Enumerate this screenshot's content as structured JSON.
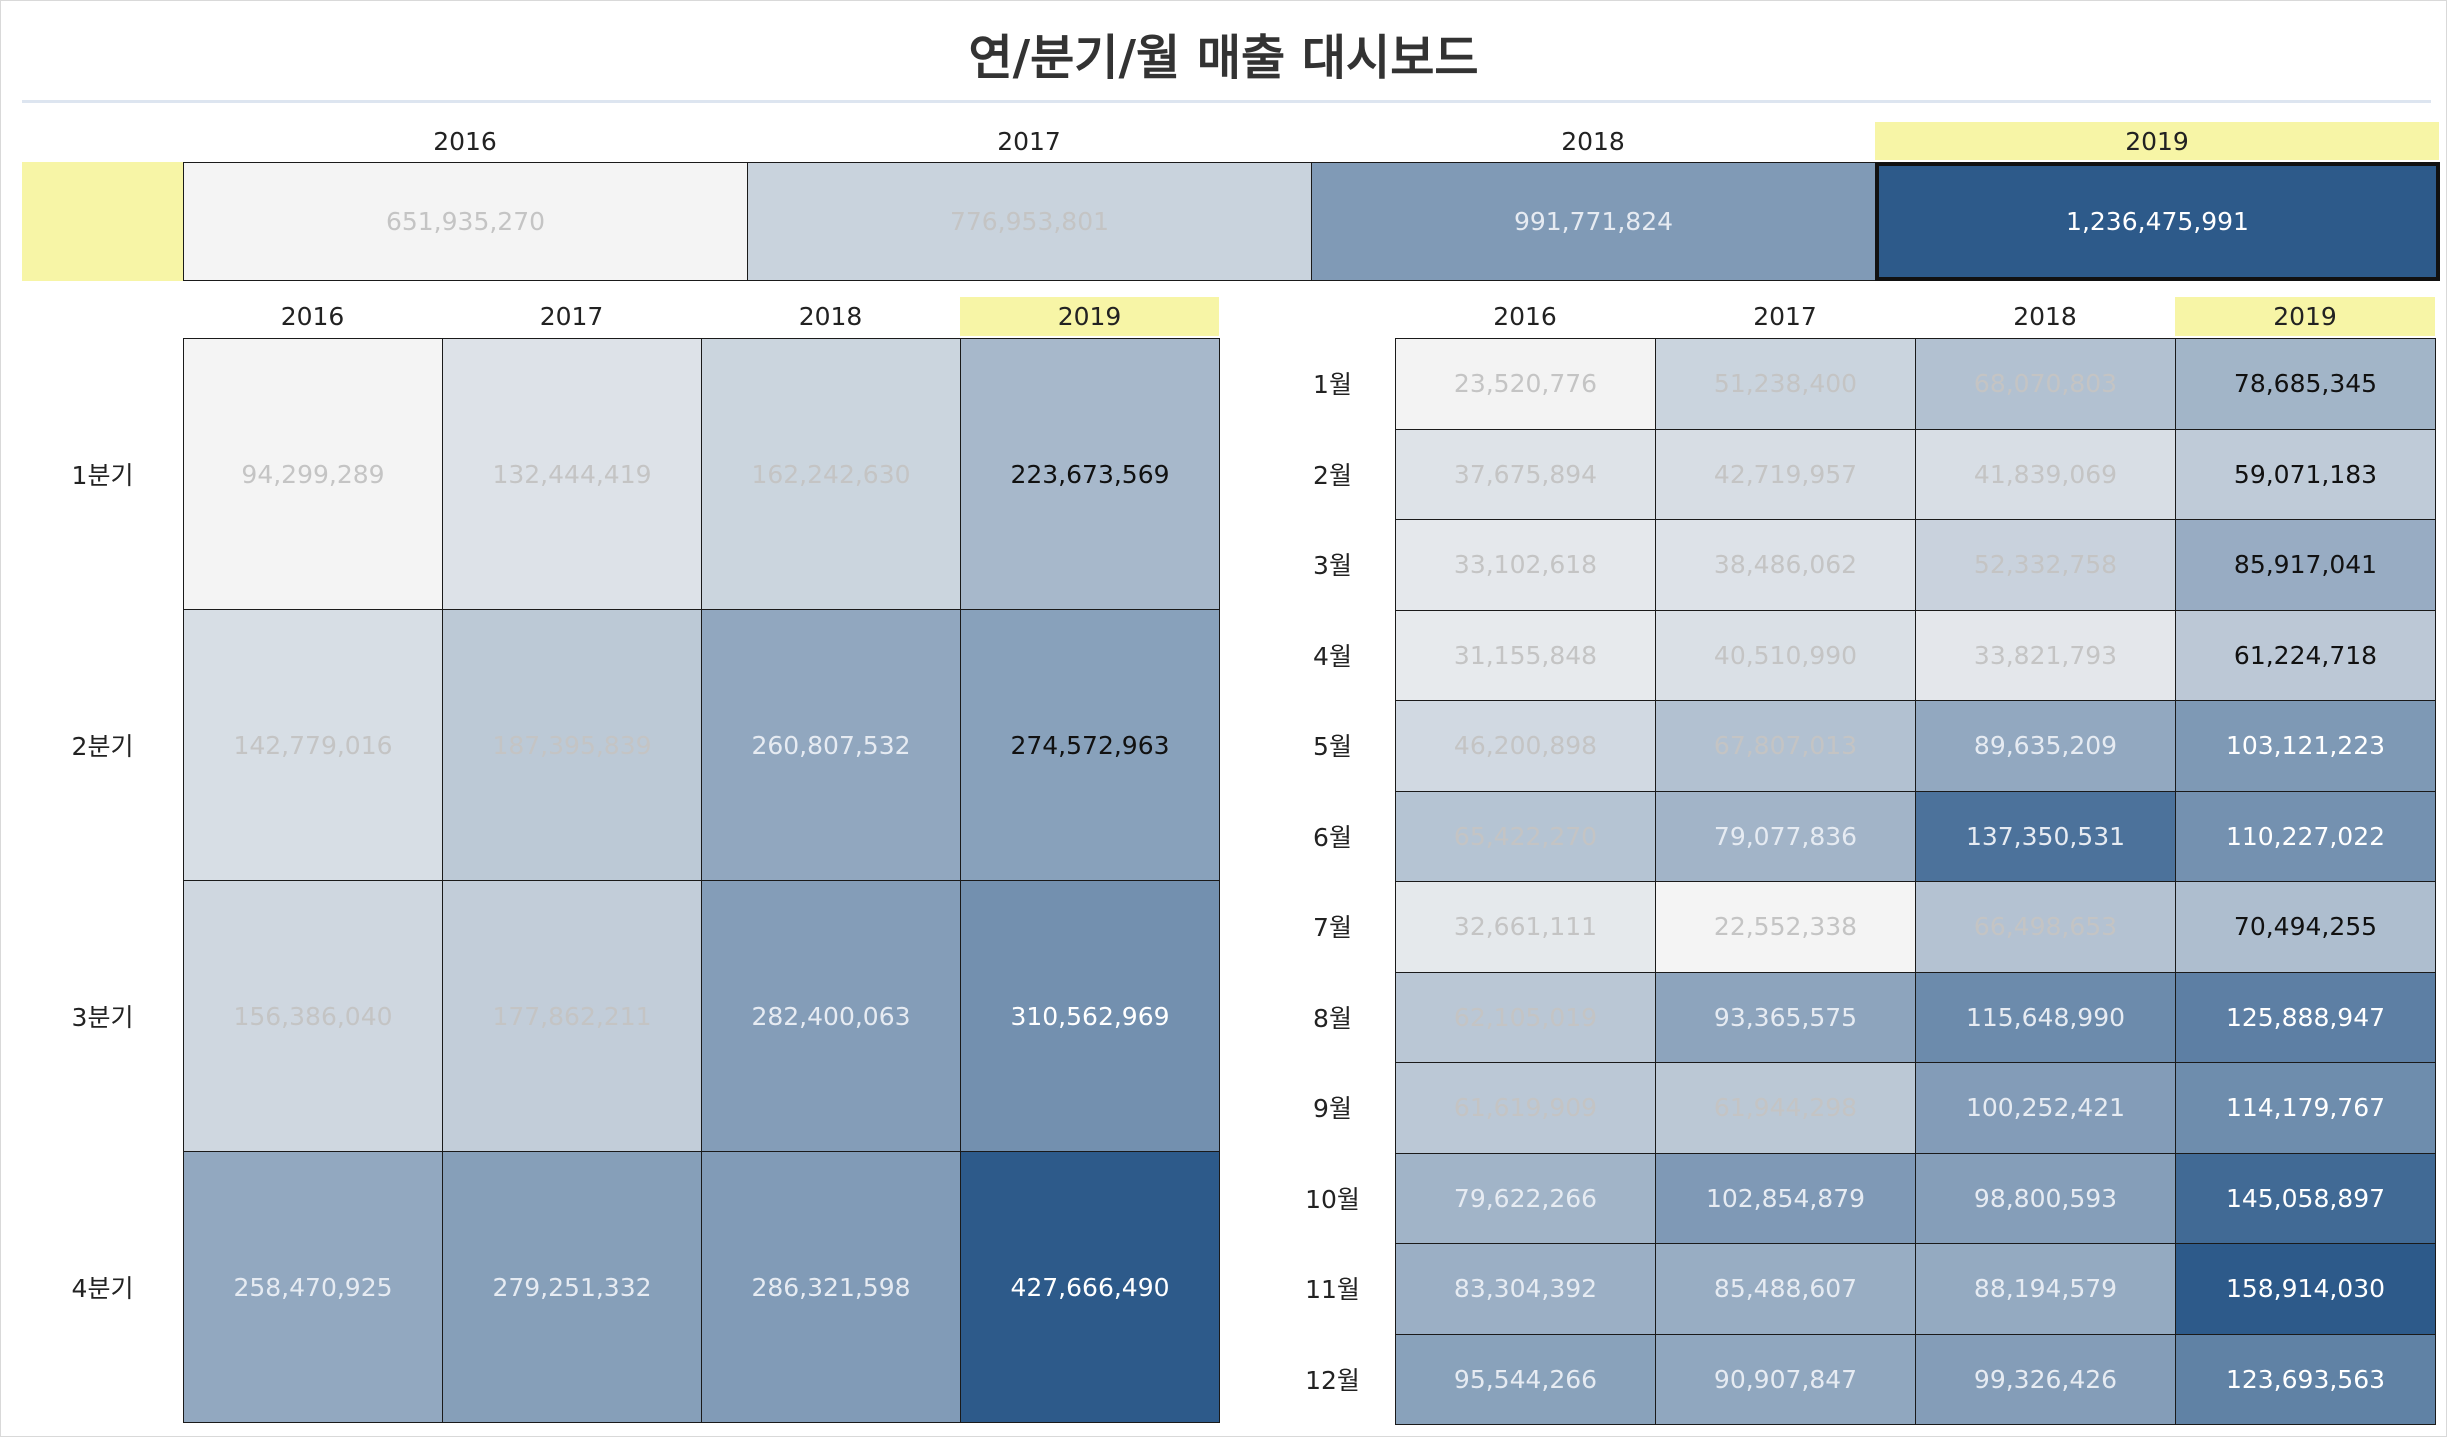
{
  "title": "연/분기/월 매출 대시보드",
  "colors": {
    "highlight_header": "#f7f5a6",
    "scale_low": "#f4f4f4",
    "scale_high": "#2d5a8a",
    "muted_text": "#c4c4c4",
    "bold_text": "#111111",
    "light_text": "#ffffff"
  },
  "selected_year": "2019",
  "chart_data": [
    {
      "type": "heatmap",
      "id": "annual",
      "x": [
        "2016",
        "2017",
        "2018",
        "2019"
      ],
      "values": [
        [
          651935270,
          776953801,
          991771824,
          1236475991
        ]
      ],
      "labels": [
        [
          "651,935,270",
          "776,953,801",
          "991,771,824",
          "1,236,475,991"
        ]
      ]
    },
    {
      "type": "heatmap",
      "id": "quarterly",
      "x": [
        "2016",
        "2017",
        "2018",
        "2019"
      ],
      "y": [
        "1분기",
        "2분기",
        "3분기",
        "4분기"
      ],
      "values": [
        [
          94299289,
          132444419,
          162242630,
          223673569
        ],
        [
          142779016,
          187395839,
          260807532,
          274572963
        ],
        [
          156386040,
          177862211,
          282400063,
          310562969
        ],
        [
          258470925,
          279251332,
          286321598,
          427666490
        ]
      ],
      "labels": [
        [
          "94,299,289",
          "132,444,419",
          "162,242,630",
          "223,673,569"
        ],
        [
          "142,779,016",
          "187,395,839",
          "260,807,532",
          "274,572,963"
        ],
        [
          "156,386,040",
          "177,862,211",
          "282,400,063",
          "310,562,969"
        ],
        [
          "258,470,925",
          "279,251,332",
          "286,321,598",
          "427,666,490"
        ]
      ]
    },
    {
      "type": "heatmap",
      "id": "monthly",
      "x": [
        "2016",
        "2017",
        "2018",
        "2019"
      ],
      "y": [
        "1월",
        "2월",
        "3월",
        "4월",
        "5월",
        "6월",
        "7월",
        "8월",
        "9월",
        "10월",
        "11월",
        "12월"
      ],
      "values": [
        [
          23520776,
          51238400,
          68070803,
          78685345
        ],
        [
          37675894,
          42719957,
          41839069,
          59071183
        ],
        [
          33102618,
          38486062,
          52332758,
          85917041
        ],
        [
          31155848,
          40510990,
          33821793,
          61224718
        ],
        [
          46200898,
          67807013,
          89635209,
          103121223
        ],
        [
          65422270,
          79077836,
          137350531,
          110227022
        ],
        [
          32661111,
          22552338,
          66498653,
          70494255
        ],
        [
          62105019,
          93365575,
          115648990,
          125888947
        ],
        [
          61619909,
          61944298,
          100252421,
          114179767
        ],
        [
          79622266,
          102854879,
          98800593,
          145058897
        ],
        [
          83304392,
          85488607,
          88194579,
          158914030
        ],
        [
          95544266,
          90907847,
          99326426,
          123693563
        ]
      ],
      "labels": [
        [
          "23,520,776",
          "51,238,400",
          "68,070,803",
          "78,685,345"
        ],
        [
          "37,675,894",
          "42,719,957",
          "41,839,069",
          "59,071,183"
        ],
        [
          "33,102,618",
          "38,486,062",
          "52,332,758",
          "85,917,041"
        ],
        [
          "31,155,848",
          "40,510,990",
          "33,821,793",
          "61,224,718"
        ],
        [
          "46,200,898",
          "67,807,013",
          "89,635,209",
          "103,121,223"
        ],
        [
          "65,422,270",
          "79,077,836",
          "137,350,531",
          "110,227,022"
        ],
        [
          "32,661,111",
          "22,552,338",
          "66,498,653",
          "70,494,255"
        ],
        [
          "62,105,019",
          "93,365,575",
          "115,648,990",
          "125,888,947"
        ],
        [
          "61,619,909",
          "61,944,298",
          "100,252,421",
          "114,179,767"
        ],
        [
          "79,622,266",
          "102,854,879",
          "98,800,593",
          "145,058,897"
        ],
        [
          "83,304,392",
          "85,488,607",
          "88,194,579",
          "158,914,030"
        ],
        [
          "95,544,266",
          "90,907,847",
          "99,326,426",
          "123,693,563"
        ]
      ]
    }
  ]
}
